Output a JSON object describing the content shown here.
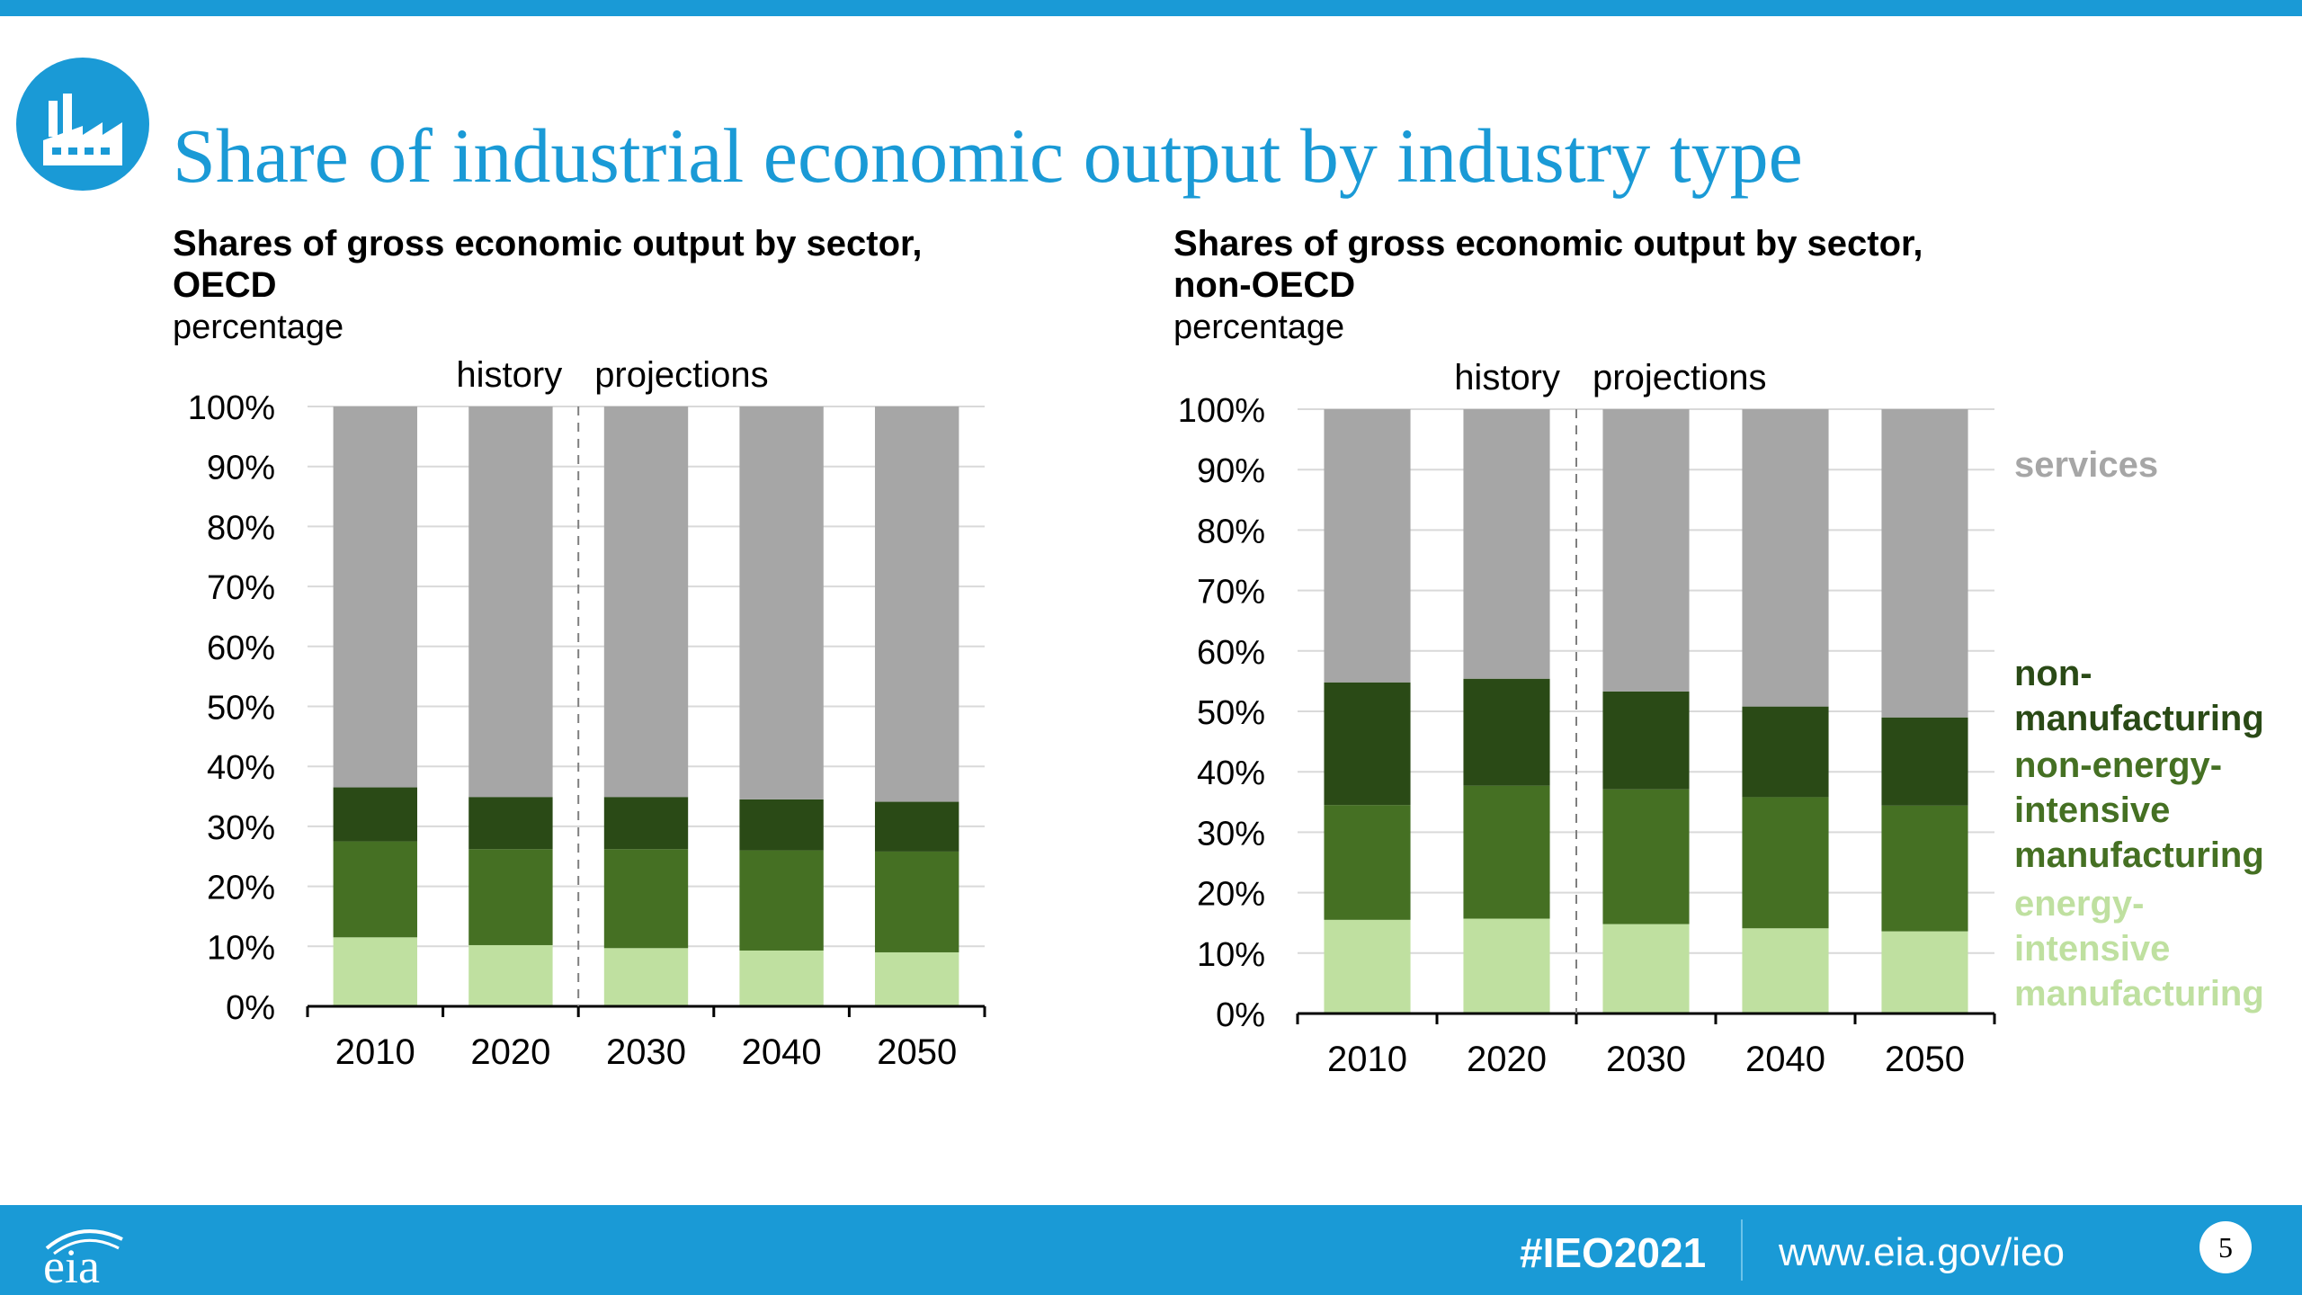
{
  "title": "Share of industrial economic output by industry type",
  "footer": {
    "hashtag": "#IEO2021",
    "url": "www.eia.gov/ieo",
    "page_number": "5",
    "logo_text": "eia"
  },
  "colors": {
    "brand_blue": "#1a9ad6",
    "services": "#a6a6a6",
    "non_manufacturing": "#2a4a16",
    "non_energy_intensive": "#457023",
    "energy_intensive": "#bfe0a0"
  },
  "icons": {
    "header_icon": "factory-icon",
    "footer_logo": "eia-logo"
  },
  "legend": {
    "services": [
      "services"
    ],
    "non_manufacturing": [
      "non-",
      "manufacturing"
    ],
    "non_energy_intensive": [
      "non-energy-",
      "intensive",
      "manufacturing"
    ],
    "energy_intensive": [
      "energy-",
      "intensive",
      "manufacturing"
    ]
  },
  "chart_data": [
    {
      "type": "bar",
      "stacked": true,
      "title": "Shares of gross economic output by sector, OECD",
      "title_lines": [
        "Shares of gross economic output by sector,",
        "OECD"
      ],
      "ylabel": "percentage",
      "ylim": [
        0,
        100
      ],
      "y_ticks": [
        "0%",
        "10%",
        "20%",
        "30%",
        "40%",
        "50%",
        "60%",
        "70%",
        "80%",
        "90%",
        "100%"
      ],
      "categories": [
        "2010",
        "2020",
        "2030",
        "2040",
        "2050"
      ],
      "annotations": {
        "history": "history",
        "projections": "projections"
      },
      "divider_between": [
        1,
        2
      ],
      "series": [
        {
          "name": "energy-intensive manufacturing",
          "values": [
            11.5,
            10.2,
            9.7,
            9.3,
            9.0
          ]
        },
        {
          "name": "non-energy-intensive manufacturing",
          "values": [
            16.0,
            16.0,
            16.5,
            16.7,
            16.8
          ]
        },
        {
          "name": "non-manufacturing",
          "values": [
            9.0,
            8.7,
            8.7,
            8.5,
            8.3
          ]
        },
        {
          "name": "services",
          "values": [
            63.5,
            65.1,
            65.1,
            65.5,
            65.9
          ]
        }
      ]
    },
    {
      "type": "bar",
      "stacked": true,
      "title": "Shares of gross economic output by sector, non-OECD",
      "title_lines": [
        "Shares of gross economic output by sector,",
        "non-OECD"
      ],
      "ylabel": "percentage",
      "ylim": [
        0,
        100
      ],
      "y_ticks": [
        "0%",
        "10%",
        "20%",
        "30%",
        "40%",
        "50%",
        "60%",
        "70%",
        "80%",
        "90%",
        "100%"
      ],
      "categories": [
        "2010",
        "2020",
        "2030",
        "2040",
        "2050"
      ],
      "annotations": {
        "history": "history",
        "projections": "projections"
      },
      "divider_between": [
        1,
        2
      ],
      "series": [
        {
          "name": "energy-intensive manufacturing",
          "values": [
            15.5,
            15.7,
            14.8,
            14.1,
            13.6
          ]
        },
        {
          "name": "non-energy-intensive manufacturing",
          "values": [
            19.0,
            22.0,
            22.3,
            21.7,
            20.8
          ]
        },
        {
          "name": "non-manufacturing",
          "values": [
            20.3,
            17.7,
            16.2,
            15.0,
            14.6
          ]
        },
        {
          "name": "services",
          "values": [
            45.2,
            44.6,
            46.7,
            49.2,
            51.0
          ]
        }
      ]
    }
  ]
}
